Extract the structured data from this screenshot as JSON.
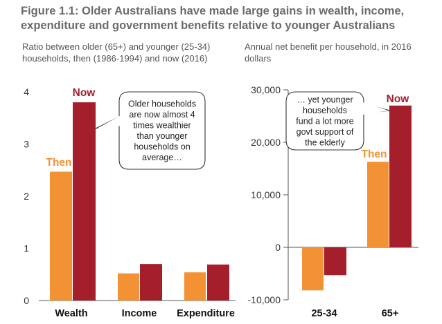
{
  "title": "Figure 1.1: Older Australians have made large gains in wealth, income, expenditure and government benefits relative to younger Australians",
  "colors": {
    "then": "#f39234",
    "now": "#a41e2b",
    "axis": "#555555",
    "title": "#6b6b6b"
  },
  "chart_data": [
    {
      "type": "bar",
      "subtitle": "Ratio between older (65+) and younger (25-34) households, then (1986-1994) and now (2016)",
      "categories": [
        "Wealth",
        "Income",
        "Expenditure"
      ],
      "series": [
        {
          "name": "Then",
          "values": [
            2.47,
            0.52,
            0.54
          ]
        },
        {
          "name": "Now",
          "values": [
            3.8,
            0.7,
            0.69
          ]
        }
      ],
      "ylim": [
        0,
        4
      ],
      "yticks": [
        "0",
        "1",
        "2",
        "3",
        "4"
      ],
      "ytick_values": [
        0,
        1,
        2,
        3,
        4
      ],
      "grid": false,
      "callout": "Older households are now almost 4 times wealthier than younger households on average…"
    },
    {
      "type": "bar",
      "subtitle": "Annual net benefit per household, in 2016 dollars",
      "categories": [
        "25-34",
        "65+"
      ],
      "series": [
        {
          "name": "Then",
          "values": [
            -8200,
            16300
          ]
        },
        {
          "name": "Now",
          "values": [
            -5300,
            27000
          ]
        }
      ],
      "ylim": [
        -10000,
        30000
      ],
      "yticks": [
        "-10,000",
        "0",
        "10,000",
        "20,000",
        "30,000"
      ],
      "ytick_values": [
        -10000,
        0,
        10000,
        20000,
        30000
      ],
      "grid": false,
      "callout": "… yet younger households fund a lot more govt support of the elderly"
    }
  ]
}
